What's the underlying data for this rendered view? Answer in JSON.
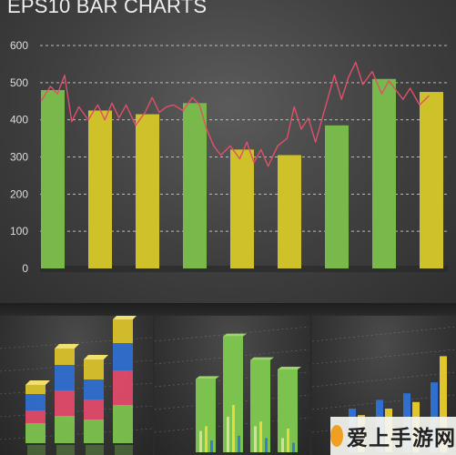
{
  "title": "EPS10 BAR CHARTS",
  "chart_data": {
    "type": "bar",
    "title": "EPS10 BAR CHARTS",
    "xlabel": "",
    "ylabel": "",
    "ylim": [
      0,
      600
    ],
    "yticks": [
      "0",
      "100",
      "200",
      "300",
      "400",
      "500",
      "600"
    ],
    "grid": true,
    "bars": [
      {
        "value": 480,
        "color": "#79b84a"
      },
      {
        "value": 425,
        "color": "#cfc12a"
      },
      {
        "value": 415,
        "color": "#cfc12a"
      },
      {
        "value": 445,
        "color": "#79b84a"
      },
      {
        "value": 320,
        "color": "#cfc12a"
      },
      {
        "value": 305,
        "color": "#cfc12a"
      },
      {
        "value": 385,
        "color": "#79b84a"
      },
      {
        "value": 510,
        "color": "#79b84a"
      },
      {
        "value": 475,
        "color": "#cfc12a"
      }
    ],
    "line": {
      "color": "#e0506a",
      "x": [
        0,
        0.2,
        0.35,
        0.5,
        0.65,
        0.8,
        1.0,
        1.2,
        1.35,
        1.5,
        1.65,
        1.8,
        2.0,
        2.2,
        2.35,
        2.5,
        2.65,
        2.8,
        3.0,
        3.2,
        3.35,
        3.5,
        3.65,
        3.8,
        4.0,
        4.2,
        4.35,
        4.5,
        4.65,
        4.8,
        5.0,
        5.2,
        5.35,
        5.5,
        5.65,
        5.8,
        6.0,
        6.2,
        6.35,
        6.5,
        6.65,
        6.8,
        7.0,
        7.2,
        7.35,
        7.5,
        7.65,
        7.8,
        8.0,
        8.2
      ],
      "y": [
        450,
        490,
        470,
        520,
        395,
        435,
        400,
        440,
        400,
        445,
        405,
        440,
        385,
        420,
        460,
        420,
        435,
        440,
        425,
        460,
        440,
        375,
        330,
        305,
        330,
        295,
        340,
        285,
        320,
        275,
        330,
        350,
        435,
        375,
        405,
        340,
        430,
        520,
        455,
        515,
        555,
        495,
        530,
        470,
        505,
        480,
        455,
        485,
        440,
        465
      ]
    }
  },
  "mini_charts": [
    {
      "type": "stacked-bar",
      "stacks": [
        [
          22,
          14,
          18,
          10
        ],
        [
          30,
          28,
          28,
          18
        ],
        [
          26,
          22,
          22,
          22
        ],
        [
          42,
          38,
          30,
          26
        ]
      ],
      "colors": [
        "#7cc24e",
        "#e04a6a",
        "#2f6fcf",
        "#d9c12a"
      ]
    },
    {
      "type": "bar",
      "values": [
        62,
        98,
        78,
        70
      ],
      "color": "#7cc24e",
      "accents": [
        {
          "values": [
            18,
            30,
            22,
            12
          ],
          "color": "#d9d9a0"
        },
        {
          "values": [
            22,
            40,
            26,
            20
          ],
          "color": "#e8d83a"
        },
        {
          "values": [
            10,
            14,
            12,
            8
          ],
          "color": "#3a7ad8"
        }
      ]
    },
    {
      "type": "grouped-bar",
      "categories": 4,
      "series": [
        {
          "values": [
            40,
            48,
            54,
            64
          ],
          "color": "#2f6fcf"
        },
        {
          "values": [
            34,
            40,
            46,
            88
          ],
          "color": "#e0c62a"
        }
      ]
    }
  ],
  "watermark": {
    "text": "爱上手游网"
  }
}
